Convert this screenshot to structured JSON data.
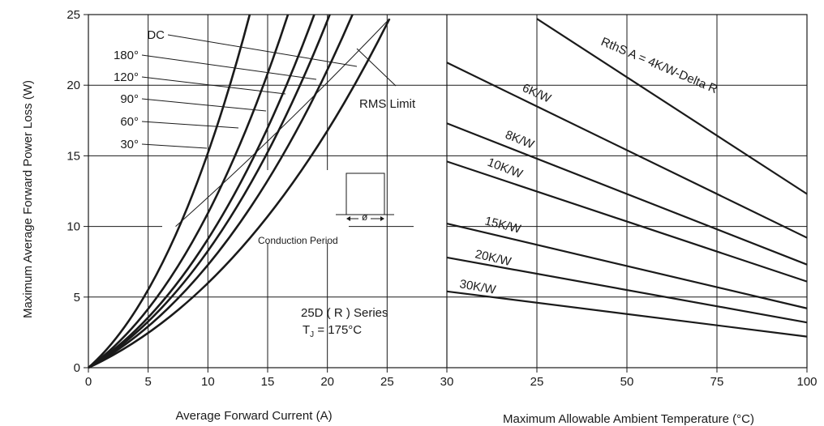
{
  "chart_data": {
    "type": "line",
    "y_axis": {
      "label": "Maximum Average Forward Power Loss (W)",
      "range": [
        0,
        25
      ],
      "ticks": [
        "0",
        "5",
        "10",
        "15",
        "20",
        "25"
      ]
    },
    "left_panel": {
      "xlabel": "Average Forward Current (A)",
      "xlim": [
        0,
        30
      ],
      "x_ticks": [
        "0",
        "5",
        "10",
        "15",
        "20",
        "25",
        "30"
      ],
      "series": [
        {
          "name": "DC",
          "x_end": 25.2,
          "y_end": 24.7
        },
        {
          "name": "180°",
          "x_end": 22.1,
          "y_end": 25
        },
        {
          "name": "120°",
          "x_end": 20.2,
          "y_end": 25
        },
        {
          "name": "90°",
          "x_end": 18.9,
          "y_end": 25
        },
        {
          "name": "60°",
          "x_end": 16.7,
          "y_end": 25
        },
        {
          "name": "30°",
          "x_end": 13.5,
          "y_end": 25
        }
      ],
      "rms_limit": {
        "label": "RMS Limit",
        "start": [
          7.3,
          10
        ],
        "end": [
          25.2,
          24.7
        ]
      },
      "inset_label": "Conduction Period",
      "inset_symbol": "ø",
      "series_title": "25D ( R )  Series",
      "tj_main": "T",
      "tj_sub": "J",
      "tj_rest": " = 175°C"
    },
    "right_panel": {
      "xlabel": "Maximum Allowable Ambient Temperature (°C)",
      "xlim": [
        0,
        100
      ],
      "x_ticks": [
        "25",
        "50",
        "75",
        "100"
      ],
      "series": [
        {
          "name": "RthS A = 4K/W-Delta R",
          "points": [
            [
              25,
              24.7
            ],
            [
              100,
              12.3
            ]
          ]
        },
        {
          "name": "6K/W",
          "points": [
            [
              0,
              21.6
            ],
            [
              100,
              9.2
            ]
          ]
        },
        {
          "name": "8K/W",
          "points": [
            [
              0,
              17.3
            ],
            [
              100,
              7.3
            ]
          ]
        },
        {
          "name": "10K/W",
          "points": [
            [
              0,
              14.6
            ],
            [
              100,
              6.1
            ]
          ]
        },
        {
          "name": "15K/W",
          "points": [
            [
              0,
              10.2
            ],
            [
              100,
              4.2
            ]
          ]
        },
        {
          "name": "20K/W",
          "points": [
            [
              0,
              7.8
            ],
            [
              100,
              3.2
            ]
          ]
        },
        {
          "name": "30K/W",
          "points": [
            [
              0,
              5.4
            ],
            [
              100,
              2.2
            ]
          ]
        }
      ]
    },
    "grid": true,
    "colors": {
      "line": "#1a1a1a",
      "grid": "#1a1a1a",
      "background": "#ffffff"
    }
  }
}
